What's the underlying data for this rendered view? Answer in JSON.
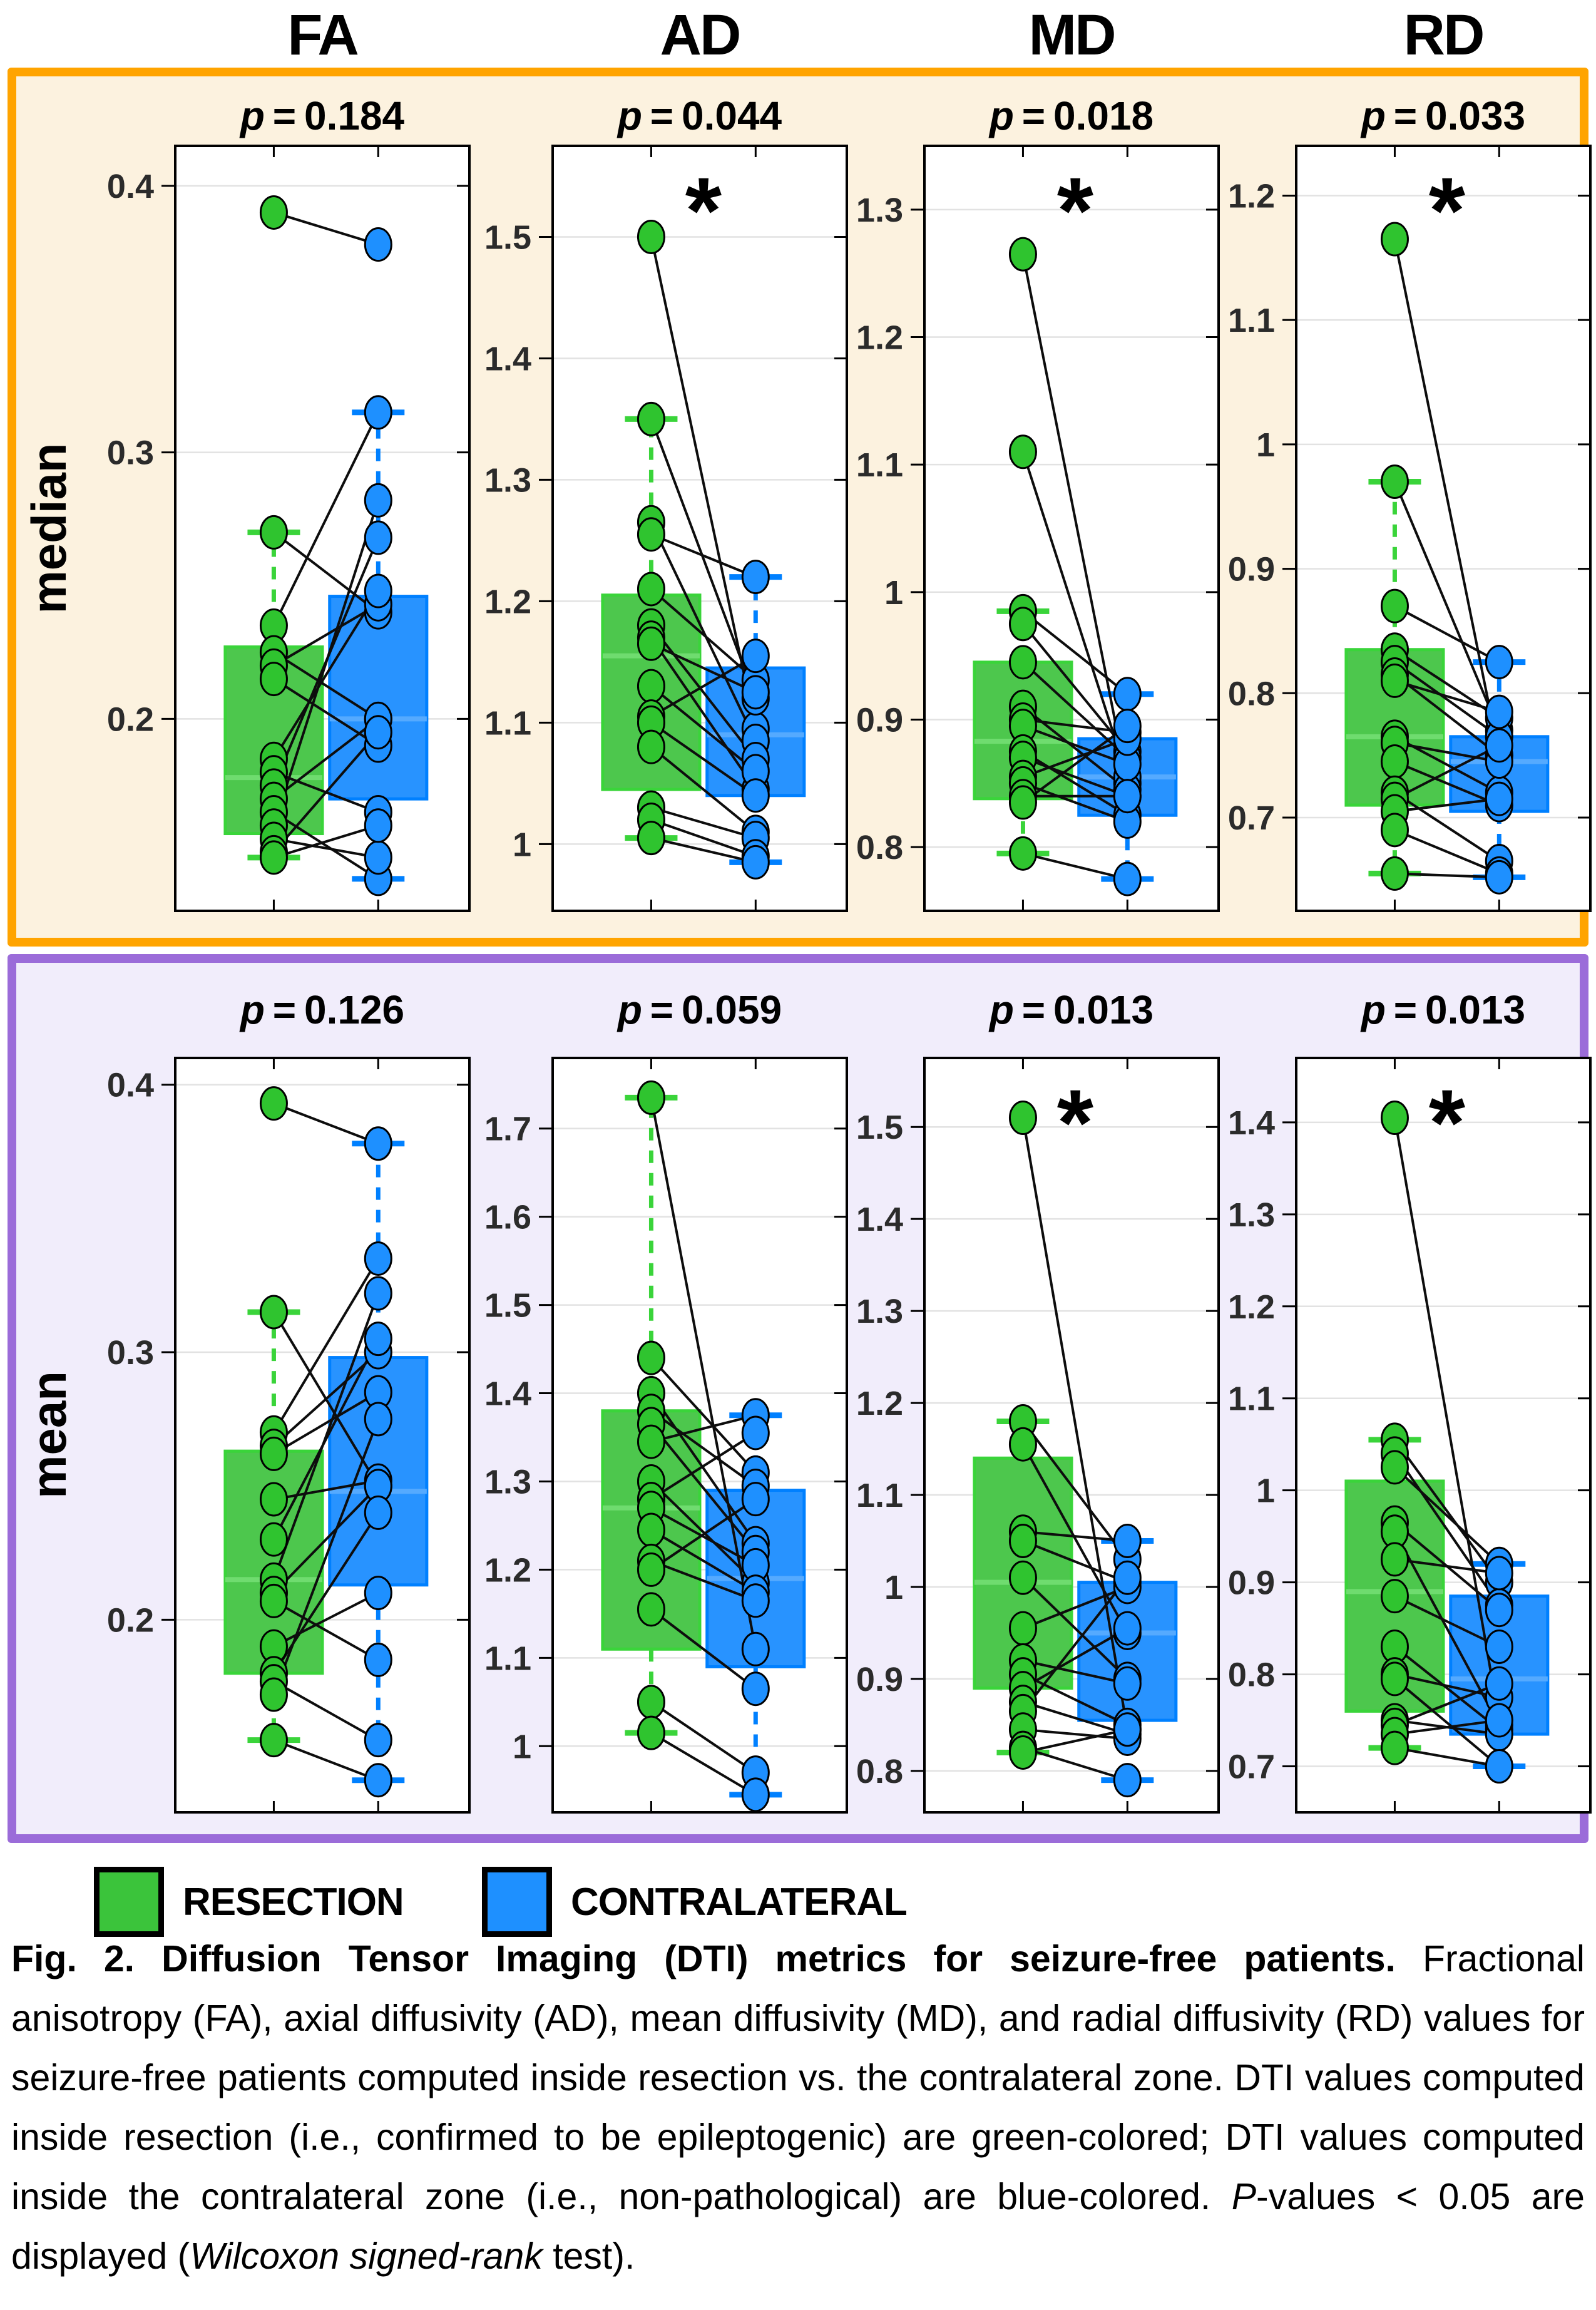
{
  "header": {
    "columns": [
      "FA",
      "AD",
      "MD",
      "RD"
    ]
  },
  "legend": [
    {
      "label": "RESECTION",
      "color": "#3bc43b"
    },
    {
      "label": "CONTRALATERAL",
      "color": "#1e90ff"
    }
  ],
  "caption": {
    "segments": [
      {
        "text": "Fig. 2. Diffusion Tensor Imaging (DTI) metrics for seizure-free patients. ",
        "bold": true
      },
      {
        "text": "Fractional anisotropy (FA), axial diffusivity (AD), mean diffusivity (MD), and radial diffusivity (RD) values for seizure-free patients computed inside resection vs. the contralateral zone. DTI values computed inside resection (i.e., confirmed to be epileptogenic) are green-colored; DTI values computed inside the contralateral zone (i.e., non-pathological) are blue-colored. "
      },
      {
        "text": "P",
        "italic": true
      },
      {
        "text": "-values < 0.05 are displayed ("
      },
      {
        "text": "Wilcoxon signed-rank",
        "italic": true
      },
      {
        "text": " test)."
      }
    ]
  },
  "chart_data": {
    "type": "paired-boxplot-grid",
    "columns": [
      "FA",
      "AD",
      "MD",
      "RD"
    ],
    "group_labels": [
      "RESECTION",
      "CONTRALATERAL"
    ],
    "significance_marker": "*",
    "colors": {
      "resection": {
        "fill": "#4dc74d",
        "edge": "#3ad43a",
        "median": "#6fdc6f",
        "point": "#2fc42f"
      },
      "contralateral": {
        "fill": "#2893ff",
        "edge": "#0080ff",
        "median": "#55aaff",
        "point": "#1e90ff"
      }
    },
    "rows": [
      {
        "label": "median",
        "accent": "#FFA400",
        "bg": "#FCF2DF",
        "panels": [
          {
            "metric": "FA",
            "p_symbol": "p",
            "p_value": "0.184",
            "significant": false,
            "ylim": [
              0.128,
              0.415
            ],
            "yticks": [
              0.2,
              0.3,
              0.4
            ],
            "resection_box": {
              "q1": 0.157,
              "median": 0.178,
              "q3": 0.227,
              "whisker_low": 0.148,
              "whisker_high": 0.27
            },
            "contralateral_box": {
              "q1": 0.17,
              "median": 0.2,
              "q3": 0.246,
              "whisker_low": 0.14,
              "whisker_high": 0.315
            },
            "pairs": [
              [
                0.39,
                0.378
              ],
              [
                0.27,
                0.24
              ],
              [
                0.235,
                0.315
              ],
              [
                0.225,
                0.2
              ],
              [
                0.22,
                0.243
              ],
              [
                0.215,
                0.19
              ],
              [
                0.185,
                0.248
              ],
              [
                0.18,
                0.165
              ],
              [
                0.175,
                0.268
              ],
              [
                0.17,
                0.2
              ],
              [
                0.165,
                0.14
              ],
              [
                0.16,
                0.282
              ],
              [
                0.155,
                0.148
              ],
              [
                0.15,
                0.195
              ],
              [
                0.148,
                0.16
              ]
            ]
          },
          {
            "metric": "AD",
            "p_symbol": "p",
            "p_value": "0.044",
            "significant": true,
            "ylim": [
              0.945,
              1.575
            ],
            "yticks": [
              1,
              1.1,
              1.2,
              1.3,
              1.4,
              1.5
            ],
            "resection_box": {
              "q1": 1.045,
              "median": 1.155,
              "q3": 1.205,
              "whisker_low": 1.005,
              "whisker_high": 1.35
            },
            "contralateral_box": {
              "q1": 1.04,
              "median": 1.09,
              "q3": 1.145,
              "whisker_low": 0.985,
              "whisker_high": 1.22
            },
            "pairs": [
              [
                1.5,
                1.095
              ],
              [
                1.35,
                1.12
              ],
              [
                1.265,
                1.085
              ],
              [
                1.255,
                1.22
              ],
              [
                1.21,
                1.135
              ],
              [
                1.18,
                1.07
              ],
              [
                1.17,
                1.045
              ],
              [
                1.165,
                1.125
              ],
              [
                1.13,
                1.06
              ],
              [
                1.105,
                1.155
              ],
              [
                1.1,
                1.04
              ],
              [
                1.08,
                1.01
              ],
              [
                1.03,
                1.005
              ],
              [
                1.02,
                0.99
              ],
              [
                1.005,
                0.985
              ]
            ]
          },
          {
            "metric": "MD",
            "p_symbol": "p",
            "p_value": "0.018",
            "significant": true,
            "ylim": [
              0.75,
              1.35
            ],
            "yticks": [
              0.8,
              0.9,
              1,
              1.1,
              1.2,
              1.3
            ],
            "resection_box": {
              "q1": 0.838,
              "median": 0.883,
              "q3": 0.945,
              "whisker_low": 0.795,
              "whisker_high": 0.985
            },
            "contralateral_box": {
              "q1": 0.825,
              "median": 0.855,
              "q3": 0.885,
              "whisker_low": 0.775,
              "whisker_high": 0.92
            },
            "pairs": [
              [
                1.265,
                0.85
              ],
              [
                1.11,
                0.855
              ],
              [
                0.985,
                0.92
              ],
              [
                0.975,
                0.875
              ],
              [
                0.945,
                0.87
              ],
              [
                0.91,
                0.845
              ],
              [
                0.9,
                0.89
              ],
              [
                0.895,
                0.865
              ],
              [
                0.875,
                0.825
              ],
              [
                0.87,
                0.84
              ],
              [
                0.855,
                0.885
              ],
              [
                0.85,
                0.82
              ],
              [
                0.84,
                0.84
              ],
              [
                0.835,
                0.895
              ],
              [
                0.795,
                0.775
              ]
            ]
          },
          {
            "metric": "RD",
            "p_symbol": "p",
            "p_value": "0.033",
            "significant": true,
            "ylim": [
              0.625,
              1.24
            ],
            "yticks": [
              0.7,
              0.8,
              0.9,
              1,
              1.1,
              1.2
            ],
            "resection_box": {
              "q1": 0.71,
              "median": 0.765,
              "q3": 0.835,
              "whisker_low": 0.655,
              "whisker_high": 0.97
            },
            "contralateral_box": {
              "q1": 0.705,
              "median": 0.745,
              "q3": 0.765,
              "whisker_low": 0.652,
              "whisker_high": 0.825
            },
            "pairs": [
              [
                1.165,
                0.75
              ],
              [
                0.97,
                0.77
              ],
              [
                0.87,
                0.825
              ],
              [
                0.835,
                0.78
              ],
              [
                0.825,
                0.765
              ],
              [
                0.815,
                0.75
              ],
              [
                0.81,
                0.785
              ],
              [
                0.765,
                0.72
              ],
              [
                0.76,
                0.745
              ],
              [
                0.745,
                0.71
              ],
              [
                0.72,
                0.665
              ],
              [
                0.715,
                0.758
              ],
              [
                0.705,
                0.715
              ],
              [
                0.69,
                0.655
              ],
              [
                0.655,
                0.652
              ]
            ]
          }
        ]
      },
      {
        "label": "mean",
        "accent": "#9B6CD9",
        "bg": "#F1EDFB",
        "panels": [
          {
            "metric": "FA",
            "p_symbol": "p",
            "p_value": "0.126",
            "significant": false,
            "ylim": [
              0.128,
              0.41
            ],
            "yticks": [
              0.2,
              0.3,
              0.4
            ],
            "resection_box": {
              "q1": 0.18,
              "median": 0.215,
              "q3": 0.263,
              "whisker_low": 0.155,
              "whisker_high": 0.315
            },
            "contralateral_box": {
              "q1": 0.213,
              "median": 0.248,
              "q3": 0.298,
              "whisker_low": 0.14,
              "whisker_high": 0.378
            },
            "pairs": [
              [
                0.393,
                0.378
              ],
              [
                0.315,
                0.25
              ],
              [
                0.27,
                0.335
              ],
              [
                0.265,
                0.3
              ],
              [
                0.262,
                0.285
              ],
              [
                0.245,
                0.252
              ],
              [
                0.23,
                0.305
              ],
              [
                0.215,
                0.322
              ],
              [
                0.21,
                0.25
              ],
              [
                0.207,
                0.185
              ],
              [
                0.19,
                0.21
              ],
              [
                0.18,
                0.24
              ],
              [
                0.177,
                0.155
              ],
              [
                0.172,
                0.275
              ],
              [
                0.155,
                0.14
              ]
            ]
          },
          {
            "metric": "AD",
            "p_symbol": "p",
            "p_value": "0.059",
            "significant": false,
            "ylim": [
              0.925,
              1.78
            ],
            "yticks": [
              1,
              1.1,
              1.2,
              1.3,
              1.4,
              1.5,
              1.6,
              1.7
            ],
            "resection_box": {
              "q1": 1.11,
              "median": 1.27,
              "q3": 1.38,
              "whisker_low": 1.015,
              "whisker_high": 1.735
            },
            "contralateral_box": {
              "q1": 1.09,
              "median": 1.19,
              "q3": 1.29,
              "whisker_low": 0.945,
              "whisker_high": 1.375
            },
            "pairs": [
              [
                1.735,
                1.11
              ],
              [
                1.44,
                1.31
              ],
              [
                1.4,
                1.23
              ],
              [
                1.38,
                1.295
              ],
              [
                1.365,
                1.22
              ],
              [
                1.345,
                1.375
              ],
              [
                1.3,
                1.185
              ],
              [
                1.28,
                1.355
              ],
              [
                1.27,
                1.205
              ],
              [
                1.245,
                1.175
              ],
              [
                1.21,
                1.165
              ],
              [
                1.2,
                1.28
              ],
              [
                1.155,
                1.065
              ],
              [
                1.05,
                0.97
              ],
              [
                1.015,
                0.945
              ]
            ]
          },
          {
            "metric": "MD",
            "p_symbol": "p",
            "p_value": "0.013",
            "significant": true,
            "ylim": [
              0.755,
              1.575
            ],
            "yticks": [
              0.8,
              0.9,
              1,
              1.1,
              1.2,
              1.3,
              1.4,
              1.5
            ],
            "resection_box": {
              "q1": 0.89,
              "median": 1.005,
              "q3": 1.14,
              "whisker_low": 0.82,
              "whisker_high": 1.18
            },
            "contralateral_box": {
              "q1": 0.855,
              "median": 0.95,
              "q3": 1.005,
              "whisker_low": 0.79,
              "whisker_high": 1.05
            },
            "pairs": [
              [
                1.51,
                0.845
              ],
              [
                1.18,
                1.03
              ],
              [
                1.155,
                0.95
              ],
              [
                1.06,
                1.05
              ],
              [
                1.05,
                1.005
              ],
              [
                1.01,
                0.9
              ],
              [
                0.955,
                1.0
              ],
              [
                0.92,
                0.895
              ],
              [
                0.905,
                0.85
              ],
              [
                0.89,
                0.955
              ],
              [
                0.875,
                0.84
              ],
              [
                0.865,
                1.01
              ],
              [
                0.845,
                0.835
              ],
              [
                0.825,
                0.79
              ],
              [
                0.82,
                0.845
              ]
            ]
          },
          {
            "metric": "RD",
            "p_symbol": "p",
            "p_value": "0.013",
            "significant": true,
            "ylim": [
              0.65,
              1.47
            ],
            "yticks": [
              0.7,
              0.8,
              0.9,
              1,
              1.1,
              1.2,
              1.3,
              1.4
            ],
            "resection_box": {
              "q1": 0.76,
              "median": 0.89,
              "q3": 1.01,
              "whisker_low": 0.72,
              "whisker_high": 1.055
            },
            "contralateral_box": {
              "q1": 0.735,
              "median": 0.795,
              "q3": 0.885,
              "whisker_low": 0.7,
              "whisker_high": 0.92
            },
            "pairs": [
              [
                1.405,
                0.75
              ],
              [
                1.055,
                0.9
              ],
              [
                1.04,
                0.875
              ],
              [
                1.025,
                0.92
              ],
              [
                0.965,
                0.87
              ],
              [
                0.955,
                0.745
              ],
              [
                0.925,
                0.91
              ],
              [
                0.885,
                0.83
              ],
              [
                0.83,
                0.74
              ],
              [
                0.8,
                0.775
              ],
              [
                0.795,
                0.7
              ],
              [
                0.75,
                0.735
              ],
              [
                0.745,
                0.79
              ],
              [
                0.735,
                0.75
              ],
              [
                0.72,
                0.7
              ]
            ]
          }
        ]
      }
    ]
  }
}
